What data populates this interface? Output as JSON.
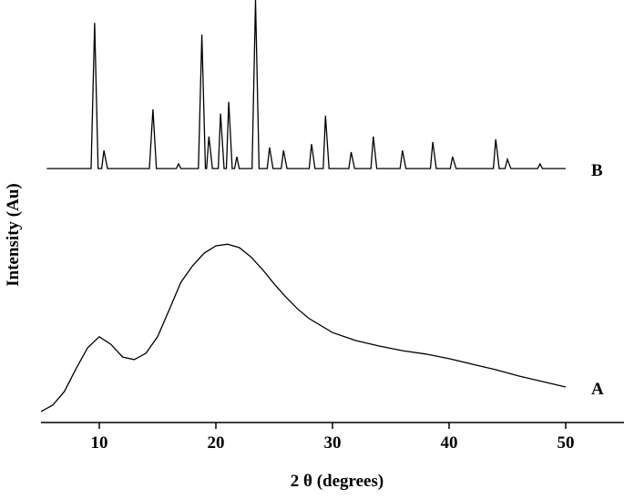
{
  "chart_data": {
    "type": "line",
    "x_label": "2 θ (degrees)",
    "y_label": "Intensity (Au)",
    "xlim": [
      5,
      55
    ],
    "xticks": [
      10,
      20,
      30,
      40,
      50
    ],
    "ylim": [
      0,
      100
    ],
    "series": [
      {
        "name": "A",
        "color": "#000000",
        "x": [
          5,
          6,
          7,
          8,
          9,
          10,
          11,
          12,
          13,
          14,
          15,
          16,
          17,
          18,
          19,
          20,
          21,
          22,
          23,
          24,
          25,
          26,
          27,
          28,
          30,
          32,
          34,
          36,
          38,
          40,
          42,
          44,
          46,
          48,
          50
        ],
        "values": [
          2.6,
          4.1,
          7.3,
          12.7,
          17.7,
          20.3,
          18.5,
          15.5,
          14.9,
          16.4,
          20.3,
          26.7,
          33.2,
          37.1,
          40.1,
          41.8,
          42.2,
          41.4,
          39.2,
          36.2,
          32.8,
          29.7,
          26.9,
          24.6,
          21.3,
          19.4,
          18.1,
          17.0,
          16.2,
          15.1,
          13.8,
          12.5,
          11.0,
          9.7,
          8.4
        ]
      },
      {
        "name": "B",
        "color": "#000000",
        "x": [
          5.5,
          9.3,
          9.6,
          9.9,
          10.2,
          10.4,
          10.7,
          14.3,
          14.6,
          14.9,
          16.6,
          16.8,
          17.0,
          18.5,
          18.8,
          19.1,
          19.2,
          19.4,
          19.7,
          20.2,
          20.4,
          20.7,
          20.9,
          21.1,
          21.4,
          21.6,
          21.8,
          22.0,
          23.1,
          23.4,
          23.7,
          24.4,
          24.6,
          24.9,
          25.6,
          25.8,
          26.1,
          28.0,
          28.2,
          28.5,
          29.2,
          29.4,
          29.7,
          31.4,
          31.6,
          31.9,
          33.3,
          33.5,
          33.8,
          35.8,
          36.0,
          36.3,
          38.4,
          38.6,
          38.9,
          40.1,
          40.3,
          40.6,
          43.8,
          44.0,
          44.3,
          44.8,
          45.0,
          45.3,
          47.6,
          47.8,
          48.0,
          50.0
        ],
        "values": [
          60.1,
          60.1,
          94.6,
          60.1,
          60.1,
          64.4,
          60.1,
          60.1,
          74.1,
          60.1,
          60.1,
          61.2,
          60.1,
          60.1,
          91.8,
          60.1,
          60.1,
          67.7,
          60.1,
          60.1,
          73.1,
          60.1,
          60.1,
          75.9,
          60.1,
          60.1,
          62.9,
          60.1,
          60.1,
          100,
          60.1,
          60.1,
          65.1,
          60.1,
          60.1,
          64.4,
          60.1,
          60.1,
          65.9,
          60.1,
          60.1,
          72.6,
          60.1,
          60.1,
          64.0,
          60.1,
          60.1,
          67.7,
          60.1,
          60.1,
          64.4,
          60.1,
          60.1,
          66.4,
          60.1,
          60.1,
          62.9,
          60.1,
          60.1,
          67.0,
          60.1,
          60.1,
          62.3,
          60.1,
          60.1,
          61.2,
          60.1,
          60.1
        ]
      }
    ]
  }
}
